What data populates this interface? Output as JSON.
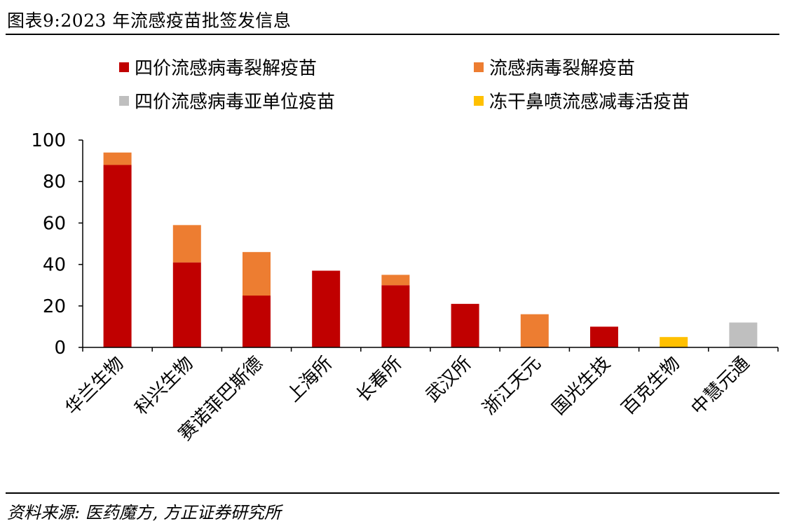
{
  "title": "图表9:2023 年流感疫苗批签发信息",
  "source": "资料来源: 医药魔方, 方正证券研究所",
  "colors": {
    "quad_split": "#C00000",
    "split": "#ED7D31",
    "quad_subunit": "#BFBFBF",
    "live_attenuated": "#FFC000"
  },
  "chart_data": {
    "type": "bar",
    "stacked": true,
    "categories": [
      "华兰生物",
      "科兴生物",
      "赛诺菲巴斯德",
      "上海所",
      "长春所",
      "武汉所",
      "浙江天元",
      "国光生技",
      "百克生物",
      "中慧元通"
    ],
    "series": [
      {
        "name": "四价流感病毒裂解疫苗",
        "key": "quad_split",
        "values": [
          88,
          41,
          25,
          37,
          30,
          21,
          0,
          10,
          0,
          0
        ]
      },
      {
        "name": "流感病毒裂解疫苗",
        "key": "split",
        "values": [
          6,
          18,
          21,
          0,
          5,
          0,
          16,
          0,
          0,
          0
        ]
      },
      {
        "name": "四价流感病毒亚单位疫苗",
        "key": "quad_subunit",
        "values": [
          0,
          0,
          0,
          0,
          0,
          0,
          0,
          0,
          0,
          12
        ]
      },
      {
        "name": "冻干鼻喷流感减毒活疫苗",
        "key": "live_attenuated",
        "values": [
          0,
          0,
          0,
          0,
          0,
          0,
          0,
          0,
          5,
          0
        ]
      }
    ],
    "ylim": [
      0,
      100
    ],
    "yticks": [
      0,
      20,
      40,
      60,
      80,
      100
    ],
    "legend_position": "top",
    "grid": false
  }
}
